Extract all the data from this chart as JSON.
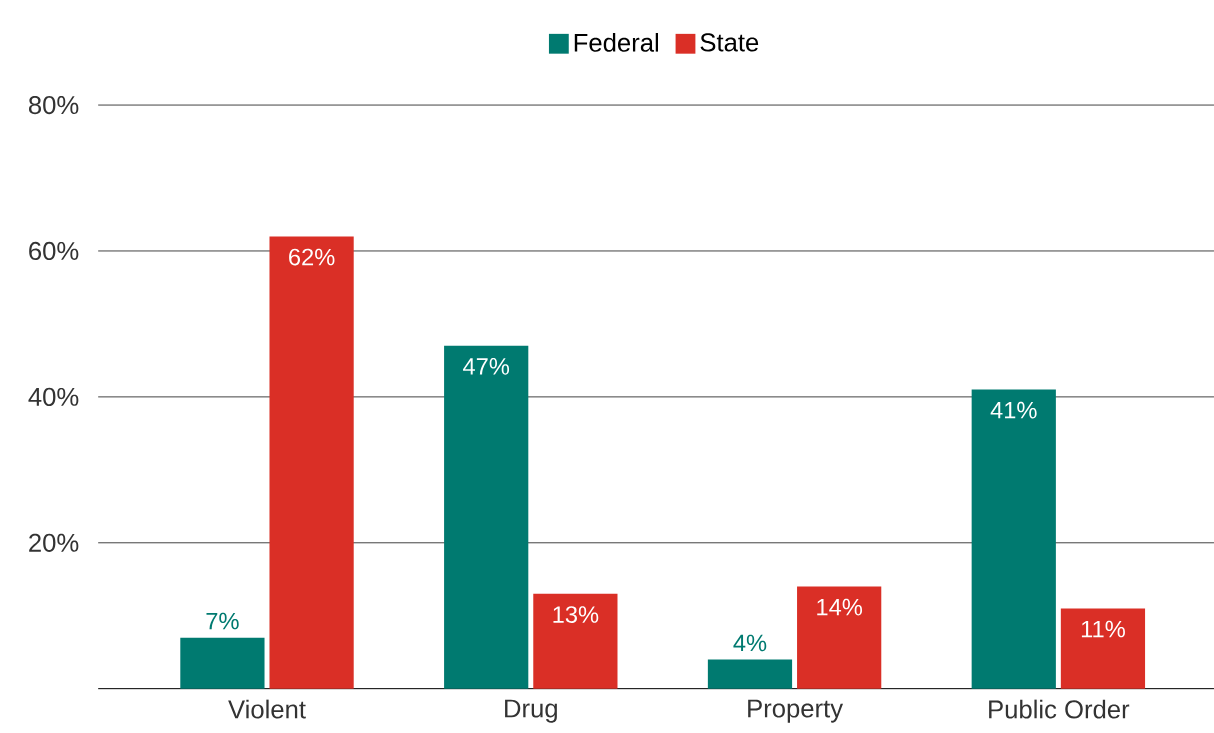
{
  "chart_data": {
    "type": "bar",
    "categories": [
      "Violent",
      "Drug",
      "Property",
      "Public Order"
    ],
    "series": [
      {
        "name": "Federal",
        "color": "#007a70",
        "values": [
          7,
          47,
          4,
          41
        ],
        "value_labels": [
          "7%",
          "47%",
          "4%",
          "41%"
        ]
      },
      {
        "name": "State",
        "color": "#da2f26",
        "values": [
          62,
          13,
          14,
          11
        ],
        "value_labels": [
          "62%",
          "13%",
          "14%",
          "11%"
        ]
      }
    ],
    "ylim": [
      0,
      80
    ],
    "yticks": [
      {
        "value": 20,
        "label": "20%"
      },
      {
        "value": 40,
        "label": "40%"
      },
      {
        "value": 60,
        "label": "60%"
      },
      {
        "value": 80,
        "label": "80%"
      }
    ],
    "grid": "y",
    "legend": "top"
  }
}
